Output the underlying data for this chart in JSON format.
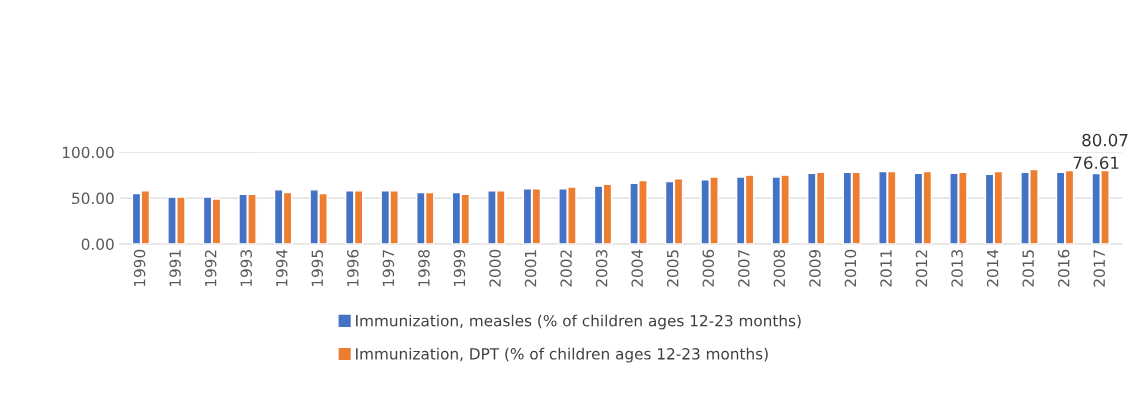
{
  "chart_data": {
    "type": "bar",
    "categories": [
      "1990",
      "1991",
      "1992",
      "1993",
      "1994",
      "1995",
      "1996",
      "1997",
      "1998",
      "1999",
      "2000",
      "2001",
      "2002",
      "2003",
      "2004",
      "2005",
      "2006",
      "2007",
      "2008",
      "2009",
      "2010",
      "2011",
      "2012",
      "2013",
      "2014",
      "2015",
      "2016",
      "2017"
    ],
    "series": [
      {
        "name": "Immunization, measles (% of children ages 12-23 months)",
        "color": "#4472c4",
        "values": [
          55,
          51,
          51,
          54,
          59,
          59,
          58,
          58,
          56,
          56,
          58,
          60,
          60,
          63,
          66,
          68,
          70,
          73,
          73,
          77,
          78,
          79,
          77,
          77,
          76,
          78,
          78,
          76.61
        ],
        "value_labels": [
          null,
          null,
          null,
          null,
          null,
          null,
          null,
          null,
          null,
          null,
          null,
          null,
          null,
          null,
          null,
          null,
          null,
          null,
          null,
          null,
          null,
          null,
          null,
          null,
          null,
          null,
          null,
          "76.61"
        ]
      },
      {
        "name": "Immunization, DPT (% of children ages 12-23 months)",
        "color": "#ed7d31",
        "values": [
          58,
          51,
          49,
          54,
          56,
          55,
          58,
          58,
          56,
          54,
          58,
          60,
          62,
          65,
          69,
          71,
          73,
          75,
          75,
          78,
          78,
          79,
          79,
          78,
          79,
          81,
          80,
          80.07
        ],
        "value_labels": [
          null,
          null,
          null,
          null,
          null,
          null,
          null,
          null,
          null,
          null,
          null,
          null,
          null,
          null,
          null,
          null,
          null,
          null,
          null,
          null,
          null,
          null,
          null,
          null,
          null,
          null,
          null,
          "80.07"
        ]
      }
    ],
    "ylim": [
      0,
      100
    ],
    "yticks": [
      {
        "value": 0,
        "label": "0.00"
      },
      {
        "value": 50,
        "label": "50.00"
      },
      {
        "value": 100,
        "label": "100.00"
      }
    ],
    "grid": "y",
    "legend": "bottom"
  }
}
